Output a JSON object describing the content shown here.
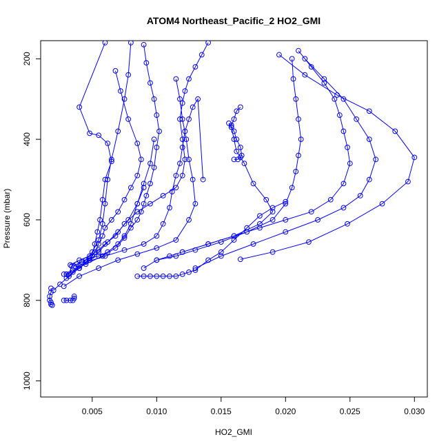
{
  "chart_data": {
    "type": "line",
    "title": "ATOM4 Northeast_Pacific_2 HO2_GMI",
    "xlabel": "HO2_GMI",
    "ylabel": "Pressure (mbar)",
    "xlim": [
      0.001,
      0.031
    ],
    "ylim": [
      1040,
      155
    ],
    "y_reversed": true,
    "xticks": [
      0.005,
      0.01,
      0.015,
      0.02,
      0.025,
      0.03
    ],
    "xtick_labels": [
      "0.005",
      "0.010",
      "0.015",
      "0.020",
      "0.025",
      "0.030"
    ],
    "yticks": [
      200,
      400,
      600,
      800,
      1000
    ],
    "ytick_labels": [
      "200",
      "400",
      "600",
      "800",
      "1000"
    ],
    "grid": false,
    "marker": "open-circle",
    "color": "#0000ff",
    "series": [
      {
        "x": [
          0.0018,
          0.0018,
          0.0017,
          0.0017,
          0.0018,
          0.0018,
          0.0019
        ],
        "y": [
          770,
          780,
          790,
          800,
          805,
          810,
          812
        ]
      },
      {
        "x": [
          0.0028,
          0.003,
          0.0033,
          0.0035,
          0.0036,
          0.0036
        ],
        "y": [
          800,
          800,
          800,
          800,
          795,
          790
        ]
      },
      {
        "x": [
          0.0028,
          0.003,
          0.0032,
          0.0034,
          0.0036,
          0.0038,
          0.0042,
          0.0045,
          0.0048,
          0.0055,
          0.0062,
          0.007,
          0.0075,
          0.008,
          0.0085,
          0.009
        ],
        "y": [
          735,
          735,
          735,
          715,
          715,
          710,
          705,
          700,
          695,
          690,
          680,
          660,
          640,
          610,
          560,
          520
        ]
      },
      {
        "x": [
          0.002,
          0.0025,
          0.0032,
          0.004,
          0.0048,
          0.0055,
          0.0062,
          0.007,
          0.0078,
          0.0085,
          0.009,
          0.0095,
          0.0098
        ],
        "y": [
          775,
          760,
          740,
          720,
          700,
          680,
          655,
          630,
          600,
          560,
          510,
          460,
          400
        ]
      },
      {
        "x": [
          0.003,
          0.0035,
          0.004,
          0.0045,
          0.005,
          0.0055,
          0.0058,
          0.006,
          0.0062,
          0.0065,
          0.007,
          0.0075,
          0.0078,
          0.008
        ],
        "y": [
          745,
          730,
          715,
          700,
          680,
          650,
          610,
          560,
          500,
          450,
          380,
          300,
          240,
          160
        ]
      },
      {
        "x": [
          0.003,
          0.004,
          0.005,
          0.0052,
          0.0054,
          0.0056,
          0.0058,
          0.006,
          0.0065,
          0.0062,
          0.0055,
          0.0048,
          0.004,
          0.006
        ],
        "y": [
          735,
          720,
          690,
          660,
          630,
          600,
          550,
          500,
          455,
          410,
          390,
          385,
          320,
          160
        ]
      },
      {
        "x": [
          0.0035,
          0.0045,
          0.0058,
          0.0068,
          0.0075,
          0.008,
          0.0085,
          0.0088,
          0.009,
          0.0092,
          0.0095,
          0.0098,
          0.01,
          0.0102,
          0.01,
          0.0098,
          0.0095,
          0.0092,
          0.009
        ],
        "y": [
          725,
          710,
          690,
          670,
          645,
          620,
          600,
          580,
          560,
          540,
          510,
          470,
          420,
          380,
          340,
          300,
          260,
          210,
          165
        ]
      },
      {
        "x": [
          0.004,
          0.0048,
          0.0052,
          0.0055,
          0.0058,
          0.006,
          0.0065,
          0.007,
          0.0075,
          0.008,
          0.0085,
          0.0088,
          0.0085,
          0.0078,
          0.0072,
          0.0068
        ],
        "y": [
          720,
          700,
          680,
          660,
          640,
          620,
          600,
          580,
          550,
          520,
          490,
          450,
          410,
          350,
          280,
          230
        ]
      },
      {
        "x": [
          0.0033,
          0.004,
          0.0048,
          0.0055,
          0.006,
          0.0068,
          0.0075,
          0.0085,
          0.0095,
          0.0105,
          0.0115,
          0.012,
          0.0122,
          0.012,
          0.0118,
          0.012,
          0.0122,
          0.0125,
          0.013,
          0.0135,
          0.014
        ],
        "y": [
          712,
          700,
          690,
          675,
          660,
          640,
          610,
          580,
          560,
          540,
          520,
          490,
          450,
          400,
          350,
          310,
          280,
          250,
          220,
          190,
          160
        ]
      },
      {
        "x": [
          0.0045,
          0.006,
          0.0075,
          0.009,
          0.01,
          0.0105,
          0.011,
          0.0112,
          0.0115,
          0.0118,
          0.012,
          0.0122,
          0.0125,
          0.0128,
          0.0132,
          0.0136
        ],
        "y": [
          705,
          690,
          675,
          660,
          640,
          610,
          570,
          530,
          490,
          460,
          420,
          380,
          350,
          320,
          300,
          500
        ]
      },
      {
        "x": [
          0.0028,
          0.004,
          0.0055,
          0.007,
          0.0085,
          0.01,
          0.0115,
          0.0125,
          0.013,
          0.0128,
          0.0125,
          0.0123,
          0.012,
          0.0118,
          0.0115
        ],
        "y": [
          765,
          740,
          720,
          700,
          685,
          670,
          650,
          600,
          560,
          500,
          450,
          400,
          350,
          300,
          250
        ]
      },
      {
        "x": [
          0.0085,
          0.009,
          0.0095,
          0.01,
          0.0105,
          0.011,
          0.0115,
          0.012,
          0.0125,
          0.013,
          0.014,
          0.015,
          0.016,
          0.017,
          0.018,
          0.019,
          0.02
        ],
        "y": [
          740,
          740,
          740,
          740,
          740,
          740,
          740,
          735,
          730,
          725,
          700,
          680,
          650,
          620,
          590,
          570,
          555
        ]
      },
      {
        "x": [
          0.009,
          0.01,
          0.011,
          0.012,
          0.014,
          0.016,
          0.018,
          0.019,
          0.0185,
          0.0175,
          0.0168,
          0.0162,
          0.016,
          0.0158,
          0.0156
        ],
        "y": [
          720,
          700,
          690,
          680,
          660,
          640,
          610,
          580,
          550,
          510,
          460,
          430,
          400,
          370,
          360
        ]
      },
      {
        "x": [
          0.01,
          0.0115,
          0.013,
          0.015,
          0.017,
          0.019,
          0.02,
          0.0205,
          0.0208,
          0.021,
          0.0212,
          0.021,
          0.0208,
          0.0206,
          0.0205
        ],
        "y": [
          700,
          690,
          675,
          655,
          630,
          600,
          560,
          520,
          480,
          440,
          400,
          350,
          300,
          250,
          200
        ]
      },
      {
        "x": [
          0.012,
          0.014,
          0.016,
          0.018,
          0.02,
          0.022,
          0.0235,
          0.0245,
          0.025,
          0.0248,
          0.0245,
          0.0242,
          0.0238,
          0.023,
          0.022,
          0.021
        ],
        "y": [
          680,
          660,
          640,
          620,
          600,
          580,
          550,
          510,
          460,
          420,
          380,
          340,
          300,
          260,
          220,
          180
        ]
      },
      {
        "x": [
          0.013,
          0.015,
          0.0175,
          0.02,
          0.0225,
          0.0245,
          0.0258,
          0.0265,
          0.027,
          0.0265,
          0.0255,
          0.0245,
          0.023,
          0.0215
        ],
        "y": [
          720,
          690,
          660,
          630,
          600,
          570,
          540,
          500,
          450,
          400,
          350,
          300,
          250,
          200
        ]
      },
      {
        "x": [
          0.0165,
          0.019,
          0.0218,
          0.0248,
          0.0275,
          0.0295,
          0.03,
          0.0285,
          0.0265,
          0.024,
          0.0215,
          0.0195
        ],
        "y": [
          698,
          680,
          655,
          610,
          560,
          505,
          445,
          380,
          330,
          290,
          240,
          190
        ]
      },
      {
        "x": [
          0.016,
          0.0163,
          0.0165,
          0.0166,
          0.0165,
          0.0162,
          0.016,
          0.0158,
          0.0158,
          0.016,
          0.0162,
          0.0165
        ],
        "y": [
          450,
          450,
          445,
          440,
          420,
          400,
          380,
          370,
          365,
          350,
          330,
          320
        ]
      }
    ]
  }
}
